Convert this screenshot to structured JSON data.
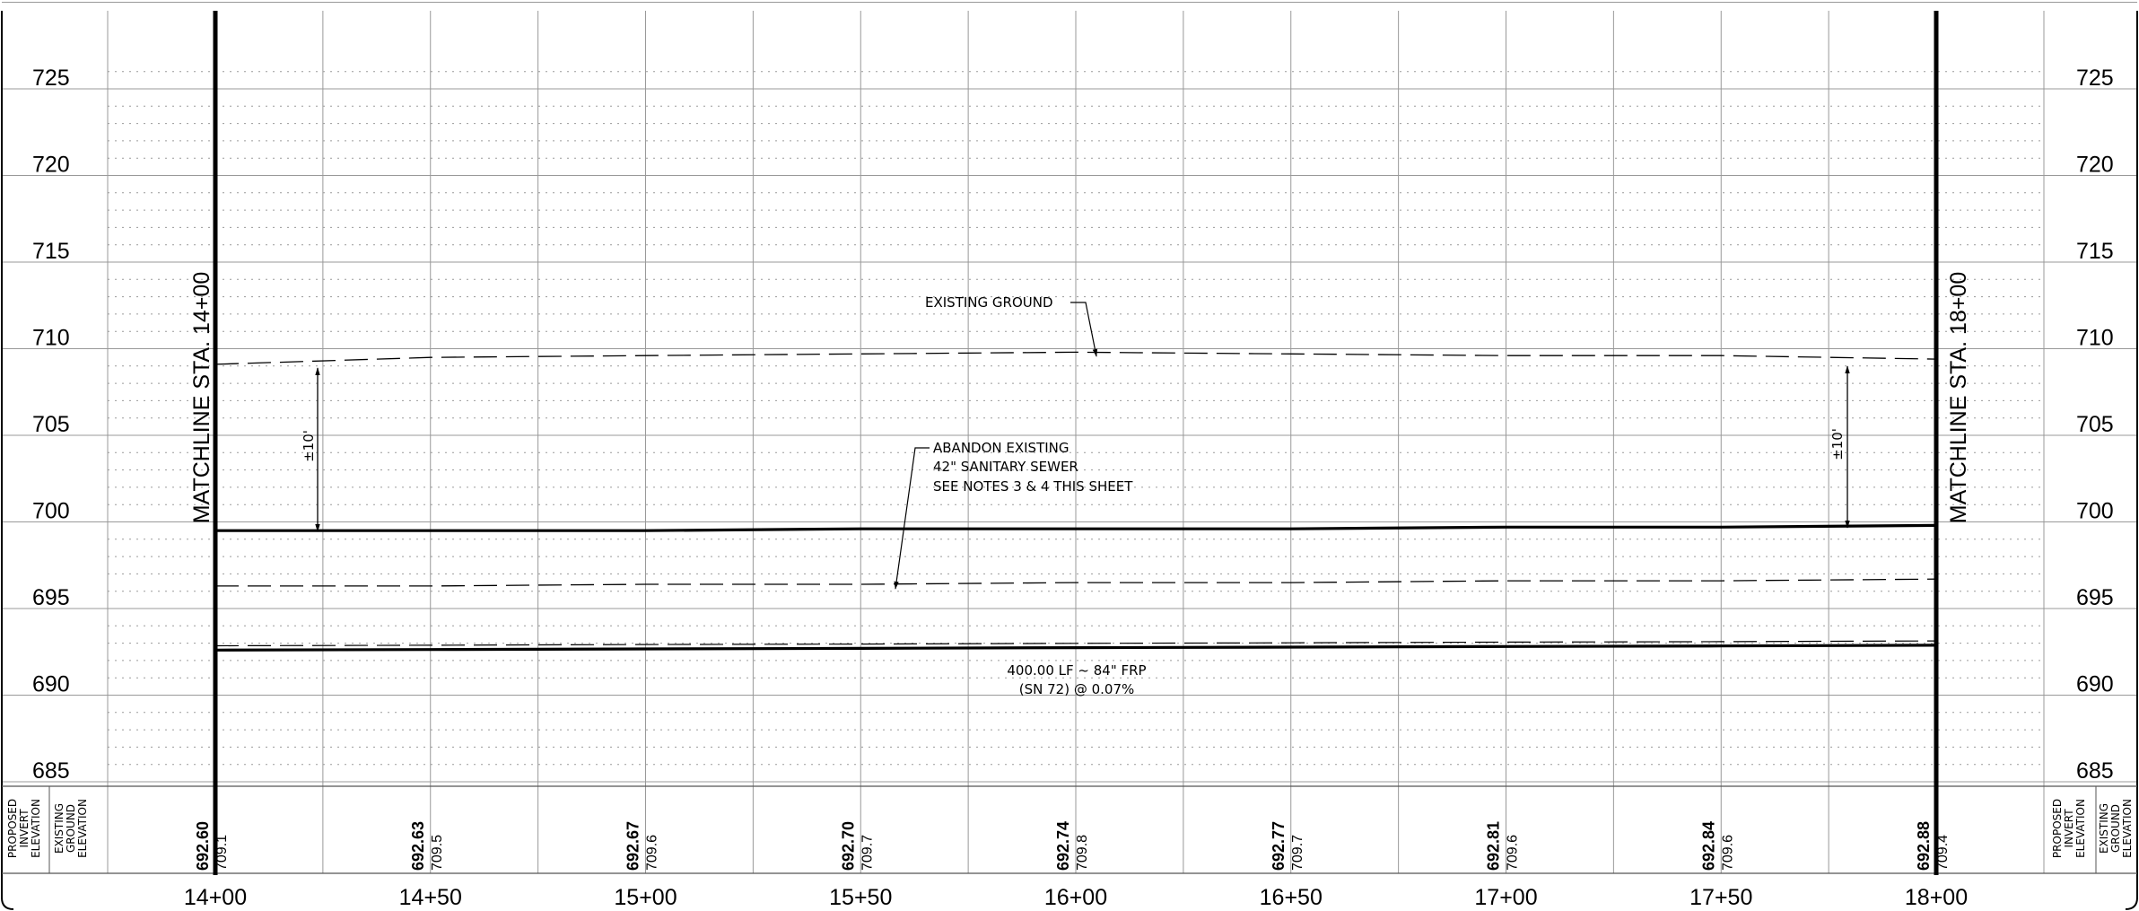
{
  "elevation_labels": [
    "725",
    "720",
    "715",
    "710",
    "705",
    "700",
    "695",
    "690",
    "685"
  ],
  "station_labels": [
    "14+00",
    "14+50",
    "15+00",
    "15+50",
    "16+00",
    "16+50",
    "17+00",
    "17+50",
    "18+00"
  ],
  "proposed_invert_elevations": [
    "692.60",
    "692.63",
    "692.67",
    "692.70",
    "692.74",
    "692.77",
    "692.81",
    "692.84",
    "692.88"
  ],
  "existing_ground_elevations": [
    "709.1",
    "709.5",
    "709.6",
    "709.7",
    "709.8",
    "709.7",
    "709.6",
    "709.6",
    "709.4"
  ],
  "matchlines": {
    "left": "MATCHLINE STA. 14+00",
    "right": "MATCHLINE STA. 18+00"
  },
  "row_headers": {
    "proposed_invert": [
      "PROPOSED",
      "INVERT",
      "ELEVATION"
    ],
    "existing_ground": [
      "EXISTING",
      "GROUND",
      "ELEVATION"
    ]
  },
  "annotations": {
    "existing_ground": "EXISTING GROUND",
    "abandon": [
      "ABANDON EXISTING",
      "42\" SANITARY SEWER",
      "SEE NOTES 3 & 4 THIS SHEET"
    ],
    "pipe": [
      "400.00 LF ~ 84\" FRP",
      "(SN 72) @ 0.07%"
    ],
    "cover_left": "±10'",
    "cover_right": "±10'"
  },
  "chart_data": {
    "type": "line",
    "title": "",
    "xlabel": "",
    "ylabel": "",
    "x_unit": "station ft",
    "x": [
      1400,
      1450,
      1500,
      1550,
      1600,
      1650,
      1700,
      1750,
      1800
    ],
    "xlim": [
      1400,
      1800
    ],
    "ylim": [
      685,
      725
    ],
    "grid": true,
    "series": [
      {
        "name": "EXISTING GROUND",
        "style": "dashed",
        "values": [
          709.1,
          709.5,
          709.6,
          709.7,
          709.8,
          709.7,
          709.6,
          709.6,
          709.4
        ]
      },
      {
        "name": "",
        "style": "solid-heavy",
        "values": [
          692.6,
          692.63,
          692.67,
          692.7,
          692.74,
          692.77,
          692.81,
          692.84,
          692.88
        ]
      },
      {
        "name": "",
        "style": "solid-heavy",
        "values": [
          699.5,
          699.5,
          699.5,
          699.6,
          699.6,
          699.6,
          699.7,
          699.7,
          699.8
        ]
      },
      {
        "name": "ABANDON EXISTING 42\" SANITARY SEWER",
        "style": "dashed",
        "values": [
          696.3,
          696.3,
          696.4,
          696.4,
          696.5,
          696.5,
          696.6,
          696.6,
          696.7
        ]
      }
    ],
    "annotations": [
      "EXISTING GROUND",
      "ABANDON EXISTING",
      "42\" SANITARY SEWER",
      "SEE NOTES 3 & 4 THIS SHEET",
      "400.00 LF ~ 84\" FRP",
      "(SN 72) @ 0.07%",
      "±10'",
      "±10'"
    ]
  }
}
